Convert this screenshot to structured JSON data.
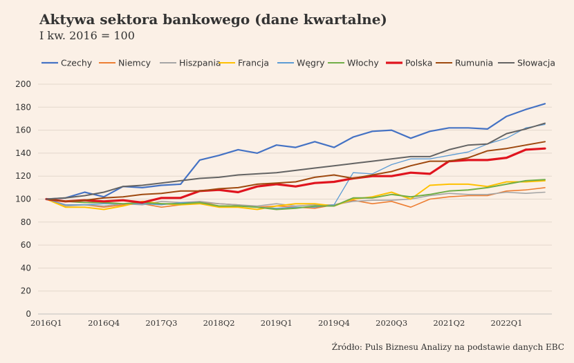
{
  "title": "Aktywa sektora bankowego (dane kwartalne)",
  "subtitle": "I kw. 2016 = 100",
  "source": "Źródło: Puls Biznesu Analizy na podstawie danych EBC",
  "chart_data": {
    "type": "line",
    "title": "Aktywa sektora bankowego (dane kwartalne)",
    "subtitle": "I kw. 2016 = 100",
    "ylim": [
      0,
      200
    ],
    "yticks": [
      0,
      20,
      40,
      60,
      80,
      100,
      120,
      140,
      160,
      180,
      200
    ],
    "grid": true,
    "legend_position": "top",
    "x": [
      "2016Q1",
      "2016Q2",
      "2016Q3",
      "2016Q4",
      "2017Q1",
      "2017Q2",
      "2017Q3",
      "2017Q4",
      "2018Q1",
      "2018Q2",
      "2018Q3",
      "2018Q4",
      "2019Q1",
      "2019Q2",
      "2019Q3",
      "2019Q4",
      "2020Q1",
      "2020Q2",
      "2020Q3",
      "2020Q4",
      "2021Q1",
      "2021Q2",
      "2021Q3",
      "2021Q4",
      "2022Q1",
      "2022Q2",
      "2022Q3"
    ],
    "xtick_labels": [
      "2016Q1",
      "2016Q4",
      "2017Q3",
      "2018Q2",
      "2019Q1",
      "2019Q4",
      "2020Q3",
      "2021Q2",
      "2022Q1"
    ],
    "series": [
      {
        "name": "Czechy",
        "color": "#4472c4",
        "width": 2.2,
        "values": [
          100,
          101,
          106,
          102,
          111,
          110,
          112,
          113,
          134,
          138,
          143,
          140,
          147,
          145,
          150,
          145,
          154,
          159,
          160,
          153,
          159,
          162,
          162,
          161,
          172,
          178,
          183
        ]
      },
      {
        "name": "Niemcy",
        "color": "#ed7d31",
        "width": 1.6,
        "values": [
          100,
          95,
          95,
          93,
          95,
          96,
          93,
          95,
          97,
          96,
          95,
          93,
          94,
          93,
          92,
          95,
          99,
          96,
          98,
          93,
          100,
          102,
          103,
          103,
          107,
          108,
          110
        ]
      },
      {
        "name": "Hiszpania",
        "color": "#a5a5a5",
        "width": 1.6,
        "values": [
          100,
          94,
          95,
          94,
          96,
          95,
          98,
          97,
          98,
          96,
          95,
          94,
          96,
          94,
          95,
          95,
          98,
          99,
          99,
          100,
          103,
          105,
          104,
          104,
          106,
          105,
          106
        ]
      },
      {
        "name": "Francja",
        "color": "#ffc000",
        "width": 2.0,
        "values": [
          100,
          93,
          93,
          91,
          94,
          98,
          96,
          95,
          96,
          93,
          93,
          91,
          94,
          96,
          96,
          94,
          100,
          102,
          106,
          100,
          112,
          113,
          113,
          111,
          115,
          115,
          116
        ]
      },
      {
        "name": "Węgry",
        "color": "#5b9bd5",
        "width": 1.3,
        "values": [
          100,
          95,
          95,
          96,
          96,
          96,
          95,
          97,
          97,
          94,
          94,
          93,
          92,
          93,
          93,
          95,
          123,
          122,
          130,
          135,
          135,
          138,
          141,
          148,
          153,
          162,
          165
        ]
      },
      {
        "name": "Włochy",
        "color": "#70ad47",
        "width": 2.0,
        "values": [
          100,
          98,
          97,
          97,
          96,
          97,
          96,
          96,
          97,
          94,
          94,
          93,
          91,
          92,
          94,
          94,
          101,
          101,
          104,
          102,
          104,
          107,
          108,
          110,
          113,
          116,
          117
        ]
      },
      {
        "name": "Polska",
        "color": "#e0141e",
        "width": 3.2,
        "values": [
          100,
          98,
          99,
          98,
          99,
          97,
          101,
          101,
          107,
          108,
          106,
          111,
          113,
          111,
          114,
          115,
          118,
          120,
          120,
          123,
          122,
          133,
          134,
          134,
          136,
          143,
          144
        ]
      },
      {
        "name": "Rumunia",
        "color": "#9e480e",
        "width": 2.0,
        "values": [
          100,
          98,
          99,
          101,
          102,
          104,
          105,
          107,
          107,
          109,
          110,
          113,
          114,
          115,
          119,
          121,
          118,
          121,
          124,
          129,
          133,
          133,
          136,
          142,
          144,
          147,
          150
        ]
      },
      {
        "name": "Słowacja",
        "color": "#636363",
        "width": 2.0,
        "values": [
          100,
          101,
          103,
          106,
          111,
          112,
          114,
          116,
          118,
          119,
          121,
          122,
          123,
          125,
          127,
          129,
          131,
          133,
          135,
          137,
          137,
          143,
          147,
          148,
          157,
          161,
          166
        ]
      }
    ]
  }
}
